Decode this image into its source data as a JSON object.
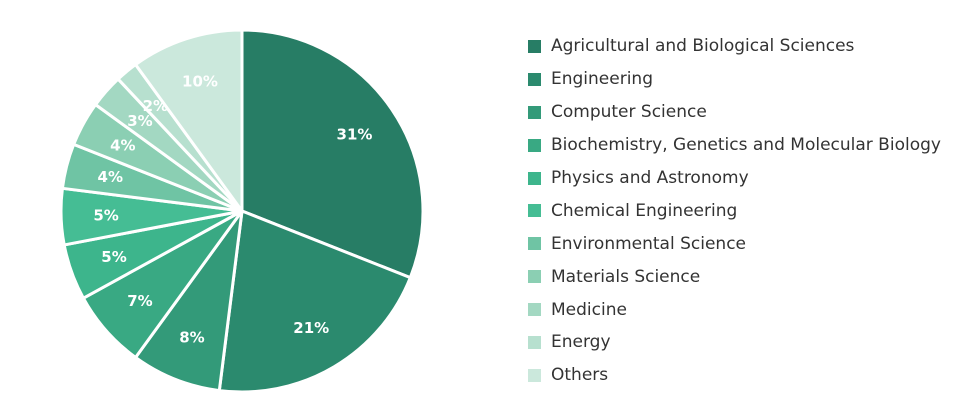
{
  "chart_data": {
    "type": "pie",
    "title": "",
    "legend_position": "right",
    "slices": [
      {
        "label": "Agricultural and Biological Sciences",
        "value": 31,
        "value_label": "31%",
        "color": "#277d65"
      },
      {
        "label": "Engineering",
        "value": 21,
        "value_label": "21%",
        "color": "#2b8a6e"
      },
      {
        "label": "Computer Science",
        "value": 8,
        "value_label": "8%",
        "color": "#339a79"
      },
      {
        "label": "Biochemistry, Genetics and Molecular Biology",
        "value": 7,
        "value_label": "7%",
        "color": "#39a983"
      },
      {
        "label": "Physics and Astronomy",
        "value": 5,
        "value_label": "5%",
        "color": "#3db58c"
      },
      {
        "label": "Chemical Engineering",
        "value": 5,
        "value_label": "5%",
        "color": "#45bd94"
      },
      {
        "label": "Environmental Science",
        "value": 4,
        "value_label": "4%",
        "color": "#6fc4a4"
      },
      {
        "label": "Materials Science",
        "value": 4,
        "value_label": "4%",
        "color": "#8bcfb3"
      },
      {
        "label": "Medicine",
        "value": 3,
        "value_label": "3%",
        "color": "#a3d8c2"
      },
      {
        "label": "Energy",
        "value": 2,
        "value_label": "2%",
        "color": "#b7e0cf"
      },
      {
        "label": "Others",
        "value": 10,
        "value_label": "10%",
        "color": "#cbe8dc"
      }
    ]
  }
}
